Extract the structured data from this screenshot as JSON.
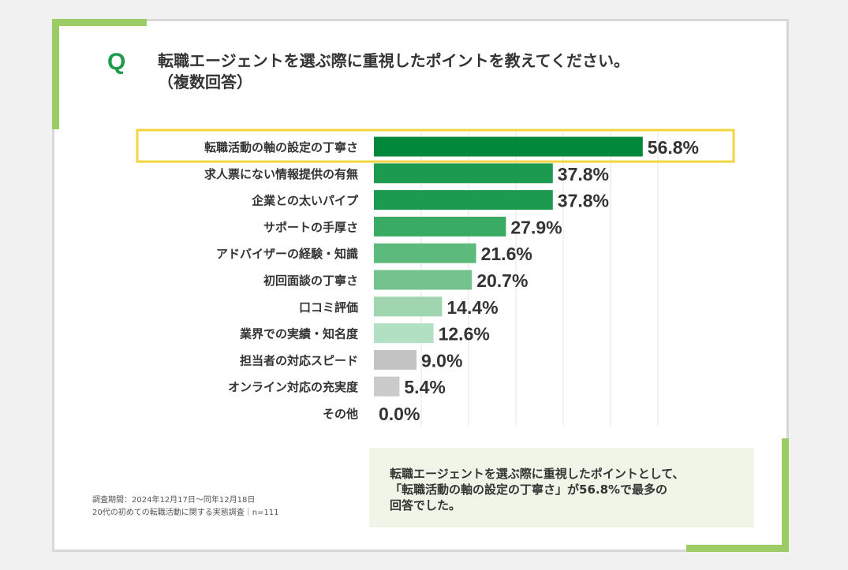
{
  "question": {
    "mark": "Q",
    "line1": "転職エージェントを選ぶ際に重視したポイントを教えてください。",
    "line2": "（複数回答）"
  },
  "chart_data": {
    "type": "bar",
    "orientation": "horizontal",
    "unit": "%",
    "highlight_index": 0,
    "categories": [
      "転職活動の軸の設定の丁寧さ",
      "求人票にない情報提供の有無",
      "企業との太いパイプ",
      "サポートの手厚さ",
      "アドバイザーの経験・知識",
      "初回面談の丁寧さ",
      "口コミ評価",
      "業界での実績・知名度",
      "担当者の対応スピード",
      "オンライン対応の充実度",
      "その他"
    ],
    "values": [
      56.8,
      37.8,
      37.8,
      27.9,
      21.6,
      20.7,
      14.4,
      12.6,
      9.0,
      5.4,
      0.0
    ],
    "labels": [
      "56.8%",
      "37.8%",
      "37.8%",
      "27.9%",
      "21.6%",
      "20.7%",
      "14.4%",
      "12.6%",
      "9.0%",
      "5.4%",
      "0.0%"
    ],
    "colors": [
      "#00883a",
      "#1c9a50",
      "#1c9a50",
      "#3aab63",
      "#5cba7c",
      "#74c38f",
      "#9fd6b0",
      "#b2e0c2",
      "#c3c3c3",
      "#cbcbcb",
      "#d3d3d3"
    ],
    "xlim": [
      0,
      60
    ],
    "grid": true
  },
  "summary": {
    "line1": "転職エージェントを選ぶ際に重視したポイントとして、",
    "line2": "「転職活動の軸の設定の丁寧さ」が56.8%で最多の",
    "line3": "回答でした。"
  },
  "footnote": {
    "line1": "調査期間：2024年12月17日～同年12月18日",
    "line2": "20代の初めての転職活動に関する実態調査｜n=111"
  },
  "colors": {
    "accent_green": "#9ccc65",
    "q_green": "#1e9a4d",
    "highlight_border": "#f5d442",
    "summary_bg": "#eff6e7"
  }
}
